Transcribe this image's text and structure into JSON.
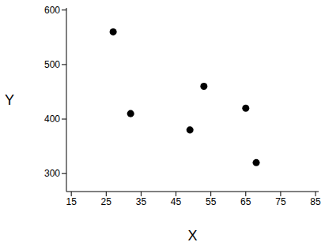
{
  "chart_data": {
    "type": "scatter",
    "x_label": "X",
    "y_label": "Y",
    "x": [
      27,
      32,
      49,
      53,
      65,
      68
    ],
    "values": [
      560,
      410,
      380,
      460,
      420,
      320
    ],
    "color": "#000000",
    "marker": "circle",
    "xlim": [
      13.6,
      85.9
    ],
    "xticks": [
      15,
      25,
      35,
      45,
      55,
      65,
      75,
      85
    ],
    "ylim": [
      267,
      604
    ],
    "yticks": [
      300,
      400,
      500,
      600
    ],
    "grid": false
  }
}
